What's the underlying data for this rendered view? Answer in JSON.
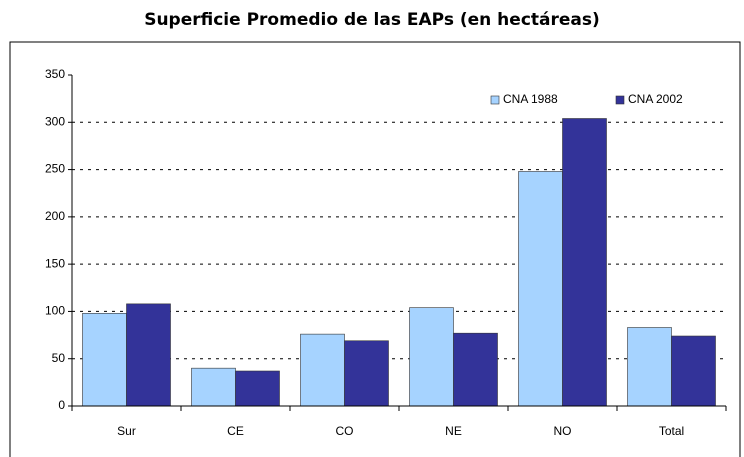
{
  "chart_data": {
    "type": "bar",
    "title": "Superficie Promedio de las EAPs (en hectáreas)",
    "categories": [
      "Sur",
      "CE",
      "CO",
      "NE",
      "NO",
      "Total"
    ],
    "series": [
      {
        "name": "CNA 1988",
        "color": "#a6d3ff",
        "values": [
          98,
          40,
          76,
          104,
          248,
          83
        ]
      },
      {
        "name": "CNA 2002",
        "color": "#333399",
        "values": [
          108,
          37,
          69,
          77,
          304,
          74
        ]
      }
    ],
    "ylim": [
      0,
      350
    ],
    "yticks": [
      0,
      50,
      100,
      150,
      200,
      250,
      300,
      350
    ],
    "grid": true,
    "legend": "top-right"
  }
}
